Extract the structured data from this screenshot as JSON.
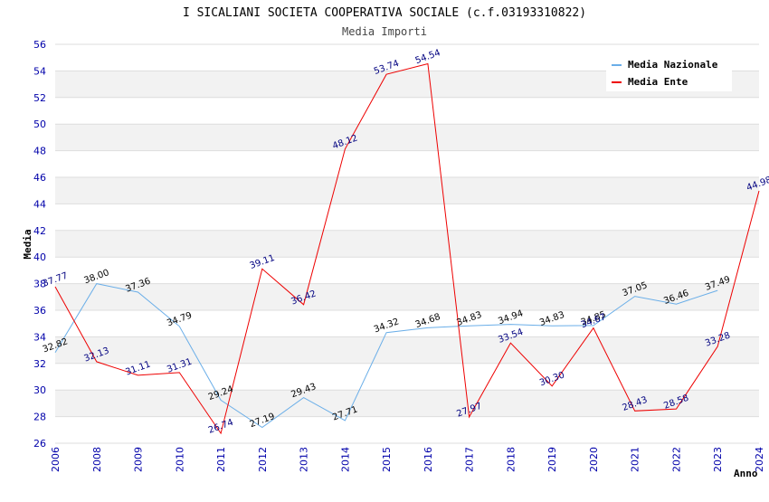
{
  "chart_data": {
    "type": "line",
    "title": "I SICALIANI SOCIETA COOPERATIVA SOCIALE (c.f.03193310822)",
    "subtitle": "Media Importi",
    "xlabel": "Anno",
    "ylabel": "Media",
    "ylim": [
      26,
      56
    ],
    "ytick_step": 2,
    "grid": true,
    "legend_position": "top-right",
    "categories": [
      "2006",
      "2008",
      "2009",
      "2010",
      "2011",
      "2012",
      "2013",
      "2014",
      "2015",
      "2016",
      "2017",
      "2018",
      "2019",
      "2020",
      "2021",
      "2022",
      "2023",
      "2024"
    ],
    "series": [
      {
        "name": "Media Nazionale",
        "color": "#6aaee8",
        "values": [
          32.82,
          38.0,
          37.36,
          34.79,
          29.24,
          27.19,
          29.43,
          27.71,
          34.32,
          34.68,
          34.83,
          34.94,
          34.83,
          34.85,
          37.05,
          36.46,
          37.49,
          null
        ],
        "labels": [
          "32.82",
          "38.00",
          "37.36",
          "34.79",
          "29.24",
          "27.19",
          "29.43",
          "27.71",
          "34.32",
          "34.68",
          "34.83",
          "34.94",
          "34.83",
          "34.85",
          "37.05",
          "36.46",
          "37.49",
          null
        ]
      },
      {
        "name": "Media Ente",
        "color": "#ee0000",
        "values": [
          37.77,
          32.13,
          31.11,
          31.31,
          26.74,
          39.11,
          36.42,
          48.12,
          53.74,
          54.54,
          27.97,
          33.54,
          30.3,
          34.67,
          28.43,
          28.58,
          33.28,
          44.98
        ],
        "labels": [
          "37.77",
          "32.13",
          "31.11",
          "31.31",
          "26.74",
          "39.11",
          "36.42",
          "48.12",
          "53.74",
          "54.54",
          "27.97",
          "33.54",
          "30.30",
          "34.67",
          "28.43",
          "28.58",
          "33.28",
          "44.98"
        ]
      }
    ]
  }
}
